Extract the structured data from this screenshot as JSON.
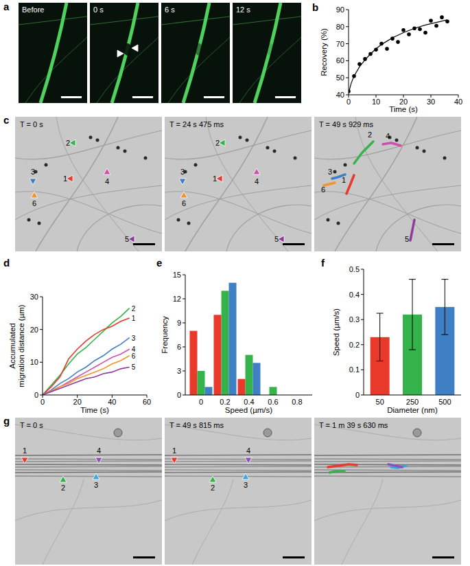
{
  "image_panels": [
    {
      "panel": "a",
      "frames": [
        {
          "label": "Before"
        },
        {
          "label": "0 s"
        },
        {
          "label": "6 s"
        },
        {
          "label": "12 s"
        }
      ]
    },
    {
      "panel": "c",
      "frames": [
        {
          "label": "T = 0 s",
          "markers": [
            {
              "label": "1",
              "color": "#e8392b"
            },
            {
              "label": "2",
              "color": "#35b34a"
            },
            {
              "label": "3",
              "color": "#3f7fc4"
            },
            {
              "label": "4",
              "color": "#d050b0"
            },
            {
              "label": "5",
              "color": "#8e3a9a"
            },
            {
              "label": "6",
              "color": "#f29330"
            }
          ]
        },
        {
          "label": "T = 24 s 475 ms",
          "markers": [
            {
              "label": "1",
              "color": "#e8392b"
            },
            {
              "label": "2",
              "color": "#35b34a"
            },
            {
              "label": "3",
              "color": "#3f7fc4"
            },
            {
              "label": "4",
              "color": "#d050b0"
            },
            {
              "label": "5",
              "color": "#8e3a9a"
            },
            {
              "label": "6",
              "color": "#f29330"
            }
          ]
        },
        {
          "label": "T = 49 s 929 ms",
          "markers": [
            {
              "label": "1",
              "color": "#e8392b"
            },
            {
              "label": "2",
              "color": "#35b34a"
            },
            {
              "label": "3",
              "color": "#3f7fc4"
            },
            {
              "label": "4",
              "color": "#d050b0"
            },
            {
              "label": "5",
              "color": "#8e3a9a"
            },
            {
              "label": "6",
              "color": "#f29330"
            }
          ]
        }
      ]
    },
    {
      "panel": "g",
      "frames": [
        {
          "label": "T = 0 s",
          "markers": [
            {
              "label": "1",
              "color": "#e8392b"
            },
            {
              "label": "2",
              "color": "#35b34a"
            },
            {
              "label": "3",
              "color": "#3aa6e0"
            },
            {
              "label": "4",
              "color": "#8a52b8"
            }
          ]
        },
        {
          "label": "T = 49 s 815 ms",
          "markers": [
            {
              "label": "1",
              "color": "#e8392b"
            },
            {
              "label": "2",
              "color": "#35b34a"
            },
            {
              "label": "3",
              "color": "#3aa6e0"
            },
            {
              "label": "4",
              "color": "#8a52b8"
            }
          ]
        },
        {
          "label": "T = 1 m 39 s 630 ms"
        }
      ]
    }
  ],
  "chart_data": [
    {
      "type": "scatter",
      "panel": "b",
      "x_label": "Time (s)",
      "y_label": "Recovery (%)",
      "xlim": [
        0,
        40
      ],
      "ylim": [
        40,
        90
      ],
      "xticks": [
        0,
        10,
        20,
        30,
        40
      ],
      "yticks": [
        40,
        50,
        60,
        70,
        80,
        90
      ],
      "series": [
        {
          "type": "scatter",
          "marker": "circle",
          "color": "#000000",
          "x": [
            0,
            2,
            4,
            6,
            8,
            10,
            12,
            14,
            16,
            18,
            20,
            22,
            24,
            26,
            28,
            30,
            32,
            34,
            36
          ],
          "values": [
            42,
            51,
            58,
            61,
            64,
            66.5,
            70,
            67,
            73,
            71,
            78,
            75.5,
            79,
            78.5,
            76.5,
            83.5,
            80.5,
            85.5,
            83
          ]
        },
        {
          "type": "line",
          "line_style": "solid",
          "color": "#000000",
          "x": [
            0,
            1,
            2,
            4,
            6,
            8,
            10,
            12,
            14,
            16,
            18,
            20,
            24,
            28,
            32,
            36
          ],
          "values": [
            41,
            47,
            51,
            56.5,
            60.5,
            64,
            67,
            69.5,
            71.5,
            73.5,
            75,
            76.5,
            79,
            81,
            82.5,
            84
          ]
        }
      ]
    },
    {
      "type": "line",
      "panel": "d",
      "x_label": "Time (s)",
      "y_label": "Accumulated migration distance (µm)",
      "xlim": [
        0,
        60
      ],
      "ylim": [
        0,
        30
      ],
      "xticks": [
        0,
        20,
        40,
        60
      ],
      "yticks": [
        0,
        10,
        20,
        30
      ],
      "x": [
        0,
        5,
        10,
        15,
        20,
        25,
        30,
        35,
        40,
        45,
        50
      ],
      "series": [
        {
          "name": "2",
          "color": "#35b34a",
          "values": [
            0,
            3,
            6,
            9.5,
            12.5,
            14.5,
            17,
            19.5,
            22,
            24,
            26.5
          ]
        },
        {
          "name": "1",
          "color": "#e8392b",
          "values": [
            0,
            2.5,
            5.5,
            11,
            14,
            16.5,
            18.5,
            20,
            21,
            22.5,
            23.5
          ]
        },
        {
          "name": "3",
          "color": "#3f7fc4",
          "values": [
            0,
            1.5,
            3.5,
            5,
            7,
            8.5,
            10.5,
            12,
            14,
            15.5,
            17.5
          ]
        },
        {
          "name": "4",
          "color": "#d050b0",
          "values": [
            0,
            1.2,
            2.5,
            4,
            5.5,
            7,
            8.5,
            10,
            11.5,
            12.5,
            14
          ]
        },
        {
          "name": "6",
          "color": "#f29330",
          "values": [
            0,
            1.2,
            2.5,
            3.5,
            5,
            6,
            7,
            8,
            9.5,
            10.5,
            12
          ]
        },
        {
          "name": "5",
          "color": "#8e3a9a",
          "values": [
            0,
            1,
            2,
            3,
            4,
            5,
            5.5,
            6.5,
            7,
            8,
            8.5
          ]
        }
      ]
    },
    {
      "type": "bar",
      "panel": "e",
      "x_label": "Speed (µm/s)",
      "y_label": "Frequency",
      "categories": [
        "0",
        "0.2",
        "0.4",
        "0.6",
        "0.8"
      ],
      "ylim": [
        0,
        15
      ],
      "yticks": [
        0,
        3,
        6,
        9,
        12,
        15
      ],
      "series": [
        {
          "color": "#e8392b",
          "values": [
            8,
            10,
            2,
            0,
            0
          ]
        },
        {
          "color": "#35b34a",
          "values": [
            3,
            13,
            5,
            1,
            0
          ]
        },
        {
          "color": "#3f7fc4",
          "values": [
            1,
            14,
            4,
            0,
            0
          ]
        }
      ]
    },
    {
      "type": "bar",
      "panel": "f",
      "x_label": "Diameter (nm)",
      "y_label": "Speed (µm/s)",
      "categories": [
        "50",
        "250",
        "500"
      ],
      "values": [
        0.23,
        0.32,
        0.35
      ],
      "errors": [
        0.095,
        0.14,
        0.11
      ],
      "colors": [
        "#e8392b",
        "#35b34a",
        "#3f7fc4"
      ],
      "ylim": [
        0,
        0.5
      ],
      "yticks": [
        0,
        0.1,
        0.2,
        0.3,
        0.4,
        0.5
      ]
    }
  ]
}
